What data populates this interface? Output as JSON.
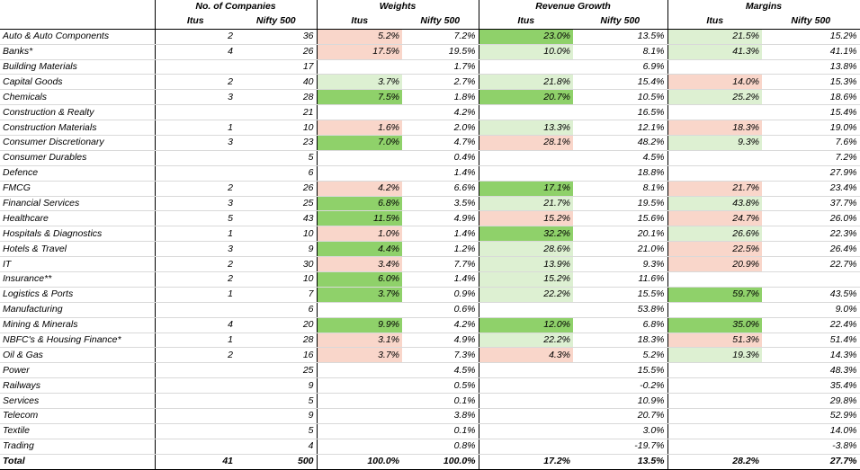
{
  "header": {
    "groups": [
      "No. of Companies",
      "Weights",
      "Revenue Growth",
      "Margins"
    ],
    "itus": "Itus",
    "nifty": "Nifty 500"
  },
  "colors": {
    "strong_green": "#8fd16a",
    "light_green": "#ddf0d2",
    "light_red": "#f9d6ca"
  },
  "rows": [
    {
      "sector": "Auto & Auto Components",
      "ci": "2",
      "cn": "36",
      "wi": "5.2%",
      "wn": "7.2%",
      "gi": "23.0%",
      "gn": "13.5%",
      "mi": "21.5%",
      "mn": "15.2%",
      "wic": "r1",
      "gic": "g2",
      "mic": "g1"
    },
    {
      "sector": "Banks*",
      "ci": "4",
      "cn": "26",
      "wi": "17.5%",
      "wn": "19.5%",
      "gi": "10.0%",
      "gn": "8.1%",
      "mi": "41.3%",
      "mn": "41.1%",
      "wic": "r1",
      "gic": "g1",
      "mic": "g1"
    },
    {
      "sector": "Building Materials",
      "ci": "",
      "cn": "17",
      "wi": "",
      "wn": "1.7%",
      "gi": "",
      "gn": "6.9%",
      "mi": "",
      "mn": "13.8%"
    },
    {
      "sector": "Capital Goods",
      "ci": "2",
      "cn": "40",
      "wi": "3.7%",
      "wn": "2.7%",
      "gi": "21.8%",
      "gn": "15.4%",
      "mi": "14.0%",
      "mn": "15.3%",
      "wic": "g1",
      "gic": "g1",
      "mic": "r1"
    },
    {
      "sector": "Chemicals",
      "ci": "3",
      "cn": "28",
      "wi": "7.5%",
      "wn": "1.8%",
      "gi": "20.7%",
      "gn": "10.5%",
      "mi": "25.2%",
      "mn": "18.6%",
      "wic": "g2",
      "gic": "g2",
      "mic": "g1"
    },
    {
      "sector": "Construction & Realty",
      "ci": "",
      "cn": "21",
      "wi": "",
      "wn": "4.2%",
      "gi": "",
      "gn": "16.5%",
      "mi": "",
      "mn": "15.4%"
    },
    {
      "sector": "Construction Materials",
      "ci": "1",
      "cn": "10",
      "wi": "1.6%",
      "wn": "2.0%",
      "gi": "13.3%",
      "gn": "12.1%",
      "mi": "18.3%",
      "mn": "19.0%",
      "wic": "r1",
      "gic": "g1",
      "mic": "r1"
    },
    {
      "sector": "Consumer Discretionary",
      "ci": "3",
      "cn": "23",
      "wi": "7.0%",
      "wn": "4.7%",
      "gi": "28.1%",
      "gn": "48.2%",
      "mi": "9.3%",
      "mn": "7.6%",
      "wic": "g2",
      "gic": "r1",
      "mic": "g1"
    },
    {
      "sector": "Consumer Durables",
      "ci": "",
      "cn": "5",
      "wi": "",
      "wn": "0.4%",
      "gi": "",
      "gn": "4.5%",
      "mi": "",
      "mn": "7.2%"
    },
    {
      "sector": "Defence",
      "ci": "",
      "cn": "6",
      "wi": "",
      "wn": "1.4%",
      "gi": "",
      "gn": "18.8%",
      "mi": "",
      "mn": "27.9%"
    },
    {
      "sector": "FMCG",
      "ci": "2",
      "cn": "26",
      "wi": "4.2%",
      "wn": "6.6%",
      "gi": "17.1%",
      "gn": "8.1%",
      "mi": "21.7%",
      "mn": "23.4%",
      "wic": "r1",
      "gic": "g2",
      "mic": "r1"
    },
    {
      "sector": "Financial Services",
      "ci": "3",
      "cn": "25",
      "wi": "6.8%",
      "wn": "3.5%",
      "gi": "21.7%",
      "gn": "19.5%",
      "mi": "43.8%",
      "mn": "37.7%",
      "wic": "g2",
      "gic": "g1",
      "mic": "g1"
    },
    {
      "sector": "Healthcare",
      "ci": "5",
      "cn": "43",
      "wi": "11.5%",
      "wn": "4.9%",
      "gi": "15.2%",
      "gn": "15.6%",
      "mi": "24.7%",
      "mn": "26.0%",
      "wic": "g2",
      "gic": "r1",
      "mic": "r1"
    },
    {
      "sector": "Hospitals & Diagnostics",
      "ci": "1",
      "cn": "10",
      "wi": "1.0%",
      "wn": "1.4%",
      "gi": "32.2%",
      "gn": "20.1%",
      "mi": "26.6%",
      "mn": "22.3%",
      "wic": "r1",
      "gic": "g2",
      "mic": "g1"
    },
    {
      "sector": "Hotels & Travel",
      "ci": "3",
      "cn": "9",
      "wi": "4.4%",
      "wn": "1.2%",
      "gi": "28.6%",
      "gn": "21.0%",
      "mi": "22.5%",
      "mn": "26.4%",
      "wic": "g2",
      "gic": "g1",
      "mic": "r1"
    },
    {
      "sector": "IT",
      "ci": "2",
      "cn": "30",
      "wi": "3.4%",
      "wn": "7.7%",
      "gi": "13.9%",
      "gn": "9.3%",
      "mi": "20.9%",
      "mn": "22.7%",
      "wic": "r1",
      "gic": "g1",
      "mic": "r1"
    },
    {
      "sector": "Insurance**",
      "ci": "2",
      "cn": "10",
      "wi": "6.0%",
      "wn": "1.4%",
      "gi": "15.2%",
      "gn": "11.6%",
      "mi": "",
      "mn": "",
      "wic": "g2",
      "gic": "g1"
    },
    {
      "sector": "Logistics & Ports",
      "ci": "1",
      "cn": "7",
      "wi": "3.7%",
      "wn": "0.9%",
      "gi": "22.2%",
      "gn": "15.5%",
      "mi": "59.7%",
      "mn": "43.5%",
      "wic": "g2",
      "gic": "g1",
      "mic": "g2"
    },
    {
      "sector": "Manufacturing",
      "ci": "",
      "cn": "6",
      "wi": "",
      "wn": "0.6%",
      "gi": "",
      "gn": "53.8%",
      "mi": "",
      "mn": "9.0%"
    },
    {
      "sector": "Mining & Minerals",
      "ci": "4",
      "cn": "20",
      "wi": "9.9%",
      "wn": "4.2%",
      "gi": "12.0%",
      "gn": "6.8%",
      "mi": "35.0%",
      "mn": "22.4%",
      "wic": "g2",
      "gic": "g2",
      "mic": "g2"
    },
    {
      "sector": "NBFC's & Housing Finance*",
      "ci": "1",
      "cn": "28",
      "wi": "3.1%",
      "wn": "4.9%",
      "gi": "22.2%",
      "gn": "18.3%",
      "mi": "51.3%",
      "mn": "51.4%",
      "wic": "r1",
      "gic": "g1",
      "mic": "r1"
    },
    {
      "sector": "Oil & Gas",
      "ci": "2",
      "cn": "16",
      "wi": "3.7%",
      "wn": "7.3%",
      "gi": "4.3%",
      "gn": "5.2%",
      "mi": "19.3%",
      "mn": "14.3%",
      "wic": "r1",
      "gic": "r1",
      "mic": "g1"
    },
    {
      "sector": "Power",
      "ci": "",
      "cn": "25",
      "wi": "",
      "wn": "4.5%",
      "gi": "",
      "gn": "15.5%",
      "mi": "",
      "mn": "48.3%"
    },
    {
      "sector": "Railways",
      "ci": "",
      "cn": "9",
      "wi": "",
      "wn": "0.5%",
      "gi": "",
      "gn": "-0.2%",
      "mi": "",
      "mn": "35.4%"
    },
    {
      "sector": "Services",
      "ci": "",
      "cn": "5",
      "wi": "",
      "wn": "0.1%",
      "gi": "",
      "gn": "10.9%",
      "mi": "",
      "mn": "29.8%"
    },
    {
      "sector": "Telecom",
      "ci": "",
      "cn": "9",
      "wi": "",
      "wn": "3.8%",
      "gi": "",
      "gn": "20.7%",
      "mi": "",
      "mn": "52.9%"
    },
    {
      "sector": "Textile",
      "ci": "",
      "cn": "5",
      "wi": "",
      "wn": "0.1%",
      "gi": "",
      "gn": "3.0%",
      "mi": "",
      "mn": "14.0%"
    },
    {
      "sector": "Trading",
      "ci": "",
      "cn": "4",
      "wi": "",
      "wn": "0.8%",
      "gi": "",
      "gn": "-19.7%",
      "mi": "",
      "mn": "-3.8%"
    }
  ],
  "total": {
    "sector": "Total",
    "ci": "41",
    "cn": "500",
    "wi": "100.0%",
    "wn": "100.0%",
    "gi": "17.2%",
    "gn": "13.5%",
    "mi": "28.2%",
    "mn": "27.7%"
  }
}
